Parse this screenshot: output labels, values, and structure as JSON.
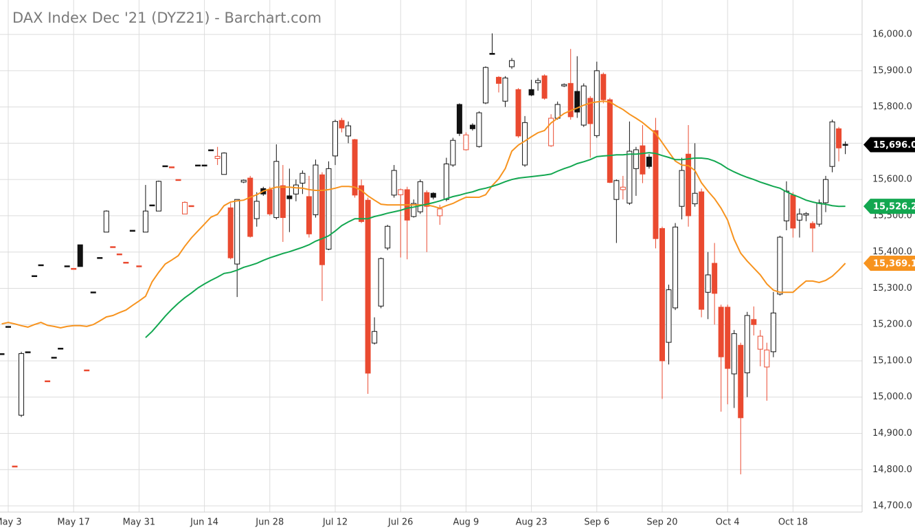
{
  "chart_data": {
    "type": "candlestick",
    "title": "DAX Index Dec '21 (DYZ21) - Barchart.com",
    "categories": [
      null,
      "May 3",
      null,
      null,
      null,
      null,
      null,
      null,
      null,
      null,
      null,
      "May 17",
      null,
      null,
      null,
      null,
      null,
      null,
      null,
      null,
      null,
      "May 31",
      null,
      null,
      null,
      null,
      null,
      null,
      null,
      null,
      null,
      "Jun 14",
      null,
      null,
      null,
      null,
      null,
      null,
      null,
      null,
      null,
      "Jun 28",
      null,
      null,
      null,
      null,
      null,
      null,
      null,
      null,
      null,
      "Jul 12",
      null,
      null,
      null,
      null,
      null,
      null,
      null,
      null,
      null,
      "Jul 26",
      null,
      null,
      null,
      null,
      null,
      null,
      null,
      null,
      null,
      "Aug 9",
      null,
      null,
      null,
      null,
      null,
      null,
      null,
      null,
      null,
      "Aug 23",
      null,
      null,
      null,
      null,
      null,
      null,
      null,
      null,
      null,
      "Sep 6",
      null,
      null,
      null,
      null,
      null,
      null,
      null,
      null,
      null,
      "Sep 20",
      null,
      null,
      null,
      null,
      null,
      null,
      null,
      null,
      null,
      "Oct 4",
      null,
      null,
      null,
      null,
      null,
      null,
      null,
      null,
      null,
      "Oct 18",
      null,
      null,
      null,
      null,
      null,
      null,
      null,
      null
    ],
    "open": [
      15120,
      15195,
      14810,
      14950,
      15125,
      15335,
      15365,
      15045,
      15110,
      15135,
      15362,
      15355,
      15420,
      15075,
      15290,
      15385,
      15455,
      15415,
      15395,
      15372,
      15460,
      15362,
      15455,
      15530,
      15513,
      15638,
      15635,
      15600,
      15505,
      15528,
      15640,
      15640,
      15682,
      15658,
      15614,
      15522,
      15367,
      15593,
      15604,
      15492,
      15575,
      15572,
      15495,
      15583,
      15555,
      15560,
      15590,
      15553,
      15503,
      15613,
      15408,
      15665,
      15763,
      15720,
      15710,
      15583,
      15543,
      15149,
      15251,
      15411,
      15557,
      15558,
      15572,
      15498,
      15511,
      15564,
      15562,
      15500,
      15545,
      15640,
      15807,
      15682,
      15750,
      15691,
      15811,
      15948,
      15882,
      15816,
      15911,
      15848,
      15640,
      15848,
      15867,
      15886,
      15693,
      15769,
      15858,
      15865,
      15843,
      15750,
      15824,
      15721,
      15890,
      15820,
      15545,
      15572,
      15535,
      15630,
      15693,
      15662,
      15735,
      15465,
      15151,
      15246,
      15526,
      15670,
      15533,
      15566,
      15289,
      15369,
      15248,
      15248,
      15064,
      15143,
      15067,
      15214,
      15132,
      15083,
      15125,
      15284,
      15486,
      15557,
      15488,
      15502,
      15479,
      15477,
      15536,
      15636,
      15740,
      15697
    ],
    "high": [
      15120,
      15195,
      14810,
      15125,
      15125,
      15335,
      15365,
      15045,
      15110,
      15135,
      15362,
      15355,
      15420,
      15075,
      15290,
      15385,
      15515,
      15415,
      15395,
      15372,
      15460,
      15362,
      15585,
      15530,
      15597,
      15638,
      15635,
      15600,
      15540,
      15528,
      15640,
      15640,
      15682,
      15690,
      15675,
      15535,
      15545,
      15600,
      15610,
      15565,
      15580,
      15580,
      15697,
      15640,
      15630,
      15600,
      15625,
      15610,
      15655,
      15620,
      15650,
      15765,
      15770,
      15760,
      15712,
      15600,
      15550,
      15220,
      15385,
      15475,
      15640,
      15575,
      15580,
      15545,
      15600,
      15570,
      15565,
      15530,
      15660,
      15715,
      15810,
      15730,
      15755,
      15788,
      15912,
      16003,
      15885,
      15885,
      15935,
      15852,
      15775,
      15875,
      15880,
      15890,
      15780,
      15815,
      15865,
      15960,
      15940,
      15865,
      15830,
      15925,
      15895,
      15825,
      15600,
      15610,
      15760,
      15690,
      15750,
      15670,
      15770,
      15470,
      15310,
      15480,
      15660,
      15750,
      15700,
      15575,
      15400,
      15425,
      15255,
      15255,
      15185,
      15150,
      15235,
      15250,
      15185,
      15150,
      15290,
      15445,
      15595,
      15565,
      15520,
      15510,
      15485,
      15545,
      15610,
      15765,
      15745,
      15705
    ],
    "low": [
      15120,
      15195,
      14810,
      14945,
      15125,
      15335,
      15365,
      15045,
      15110,
      15135,
      15362,
      15355,
      15360,
      15075,
      15290,
      15385,
      15455,
      15415,
      15395,
      15372,
      15460,
      15362,
      15455,
      15530,
      15513,
      15638,
      15635,
      15600,
      15505,
      15528,
      15640,
      15640,
      15682,
      15640,
      15614,
      15380,
      15276,
      15590,
      15440,
      15470,
      15555,
      15500,
      15490,
      15428,
      15455,
      15540,
      15560,
      15440,
      15495,
      15265,
      15405,
      15640,
      15730,
      15700,
      15550,
      15480,
      15009,
      15145,
      15245,
      15405,
      15550,
      15385,
      15380,
      15495,
      15505,
      15400,
      15545,
      15475,
      15540,
      15635,
      15720,
      15680,
      15735,
      15688,
      15808,
      15945,
      15840,
      15800,
      15905,
      15715,
      15635,
      15830,
      15845,
      15820,
      15690,
      15765,
      15855,
      15765,
      15770,
      15745,
      15660,
      15715,
      15810,
      15590,
      15425,
      15545,
      15530,
      15555,
      15590,
      15630,
      15410,
      14995,
      15090,
      15240,
      15490,
      15470,
      15525,
      15220,
      15215,
      15200,
      14960,
      14980,
      14970,
      14787,
      15000,
      15170,
      15085,
      14990,
      15110,
      15280,
      15460,
      15440,
      15440,
      15485,
      15400,
      15470,
      15510,
      15620,
      15650,
      15670
    ],
    "close": [
      15120,
      15195,
      14810,
      15120,
      15125,
      15335,
      15365,
      15045,
      15110,
      15135,
      15362,
      15355,
      15360,
      15075,
      15290,
      15385,
      15513,
      15415,
      15395,
      15372,
      15460,
      15362,
      15513,
      15530,
      15595,
      15638,
      15635,
      15600,
      15537,
      15528,
      15640,
      15640,
      15682,
      15664,
      15673,
      15384,
      15545,
      15598,
      15443,
      15540,
      15560,
      15505,
      15650,
      15495,
      15547,
      15585,
      15617,
      15450,
      15640,
      15365,
      15630,
      15760,
      15742,
      15748,
      15557,
      15484,
      15066,
      15181,
      15382,
      15471,
      15625,
      15572,
      15488,
      15534,
      15594,
      15526,
      15551,
      15519,
      15643,
      15708,
      15727,
      15723,
      15740,
      15784,
      15909,
      15945,
      15865,
      15880,
      15928,
      15720,
      15757,
      15833,
      15873,
      15824,
      15769,
      15807,
      15862,
      15773,
      15786,
      15858,
      15754,
      15900,
      15820,
      15592,
      15597,
      15579,
      15678,
      15682,
      15615,
      15636,
      15437,
      15100,
      15296,
      15469,
      15625,
      15500,
      15562,
      15242,
      15337,
      15286,
      15111,
      15079,
      15175,
      14943,
      15225,
      15200,
      15168,
      15130,
      15232,
      15441,
      15568,
      15466,
      15505,
      15506,
      15466,
      15536,
      15600,
      15759,
      15687,
      15696
    ],
    "up_color": "#111111",
    "down_color": "#ea4a30",
    "last_label": "15,696.0",
    "overlays": [
      {
        "type": "line",
        "color": "#f7931e",
        "last_label": "15,369.1",
        "values": [
          15202,
          15206,
          15202,
          15197,
          15193,
          15200,
          15206,
          15198,
          15195,
          15191,
          15195,
          15197,
          15197,
          15195,
          15200,
          15210,
          15221,
          15225,
          15233,
          15240,
          15253,
          15265,
          15278,
          15318,
          15344,
          15367,
          15378,
          15390,
          15416,
          15439,
          15458,
          15477,
          15496,
          15504,
          15528,
          15538,
          15541,
          15543,
          15551,
          15558,
          15568,
          15574,
          15579,
          15579,
          15579,
          15577,
          15576,
          15572,
          15570,
          15570,
          15572,
          15576,
          15581,
          15581,
          15579,
          15570,
          15555,
          15543,
          15532,
          15530,
          15530,
          15530,
          15530,
          15530,
          15530,
          15530,
          15526,
          15521,
          15528,
          15534,
          15543,
          15551,
          15551,
          15551,
          15558,
          15583,
          15602,
          15630,
          15678,
          15695,
          15706,
          15718,
          15729,
          15735,
          15756,
          15769,
          15782,
          15790,
          15797,
          15805,
          15811,
          15814,
          15816,
          15814,
          15803,
          15793,
          15780,
          15769,
          15757,
          15742,
          15727,
          15702,
          15676,
          15651,
          15640,
          15638,
          15625,
          15591,
          15568,
          15547,
          15521,
          15488,
          15435,
          15397,
          15375,
          15356,
          15337,
          15312,
          15295,
          15289,
          15289,
          15289,
          15305,
          15320,
          15320,
          15316,
          15322,
          15333,
          15350,
          15369.1
        ]
      },
      {
        "type": "line",
        "color": "#12a750",
        "last_label": "15,526.2",
        "values": [
          null,
          null,
          null,
          null,
          null,
          null,
          null,
          null,
          null,
          null,
          null,
          null,
          null,
          null,
          null,
          null,
          null,
          null,
          null,
          null,
          null,
          null,
          15164,
          15181,
          15202,
          15223,
          15242,
          15259,
          15274,
          15287,
          15301,
          15312,
          15322,
          15331,
          15341,
          15344,
          15350,
          15358,
          15363,
          15369,
          15377,
          15384,
          15390,
          15396,
          15401,
          15407,
          15413,
          15420,
          15430,
          15437,
          15445,
          15458,
          15473,
          15483,
          15492,
          15492,
          15492,
          15498,
          15502,
          15507,
          15511,
          15515,
          15521,
          15524,
          15528,
          15532,
          15536,
          15541,
          15547,
          15553,
          15557,
          15562,
          15566,
          15572,
          15576,
          15581,
          15587,
          15594,
          15600,
          15604,
          15606,
          15608,
          15610,
          15612,
          15615,
          15623,
          15630,
          15636,
          15644,
          15649,
          15655,
          15663,
          15665,
          15666,
          15668,
          15668,
          15670,
          15670,
          15672,
          15674,
          15672,
          15666,
          15661,
          15655,
          15655,
          15657,
          15659,
          15659,
          15657,
          15651,
          15642,
          15630,
          15621,
          15613,
          15606,
          15600,
          15593,
          15587,
          15581,
          15576,
          15566,
          15558,
          15551,
          15543,
          15538,
          15534,
          15532,
          15528,
          15526,
          15526.2
        ]
      }
    ],
    "ylim": [
      14683,
      16095
    ],
    "yticks": [
      {
        "value": 14700,
        "label": "14,700.0"
      },
      {
        "value": 14800,
        "label": "14,800.0"
      },
      {
        "value": 14900,
        "label": "14,900.0"
      },
      {
        "value": 15000,
        "label": "15,000.0"
      },
      {
        "value": 15100,
        "label": "15,100.0"
      },
      {
        "value": 15200,
        "label": "15,200.0"
      },
      {
        "value": 15300,
        "label": "15,300.0"
      },
      {
        "value": 15400,
        "label": "15,400.0"
      },
      {
        "value": 15500,
        "label": "15,500.0"
      },
      {
        "value": 15600,
        "label": "15,600.0"
      },
      {
        "value": 15700,
        "label": "15,700.0"
      },
      {
        "value": 15800,
        "label": "15,800.0"
      },
      {
        "value": 15900,
        "label": "15,900.0"
      },
      {
        "value": 16000,
        "label": "16,000.0"
      }
    ],
    "grid": true
  }
}
